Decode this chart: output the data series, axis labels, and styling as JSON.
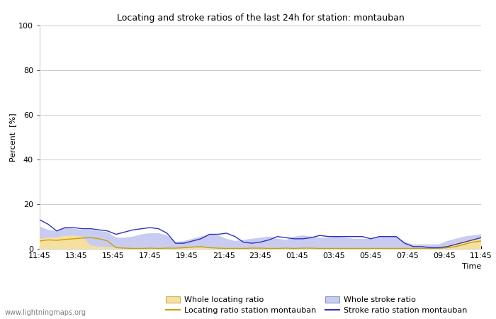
{
  "title": "Locating and stroke ratios of the last 24h for station: montauban",
  "xlabel": "Time",
  "ylabel": "Percent  [%]",
  "ylim": [
    0,
    100
  ],
  "yticks": [
    0,
    20,
    40,
    60,
    80,
    100
  ],
  "x_labels": [
    "11:45",
    "13:45",
    "15:45",
    "17:45",
    "19:45",
    "21:45",
    "23:45",
    "01:45",
    "03:45",
    "05:45",
    "07:45",
    "09:45",
    "11:45"
  ],
  "watermark": "www.lightningmaps.org",
  "legend": [
    {
      "label": "Whole locating ratio",
      "type": "fill",
      "color": "#f5e0a0",
      "edgecolor": "#d4b86a"
    },
    {
      "label": "Locating ratio station montauban",
      "type": "line",
      "color": "#c8a000"
    },
    {
      "label": "Whole stroke ratio",
      "type": "fill",
      "color": "#c8ccf0",
      "edgecolor": "#a0a8d8"
    },
    {
      "label": "Stroke ratio station montauban",
      "type": "line",
      "color": "#3030c0"
    }
  ],
  "whole_locating_upper": [
    4.5,
    5.0,
    5.2,
    5.8,
    6.0,
    5.5,
    1.5,
    1.0,
    0.8,
    0.5,
    0.5,
    0.5,
    0.5,
    0.5,
    0.5,
    0.5,
    0.5,
    0.5,
    0.5,
    0.5,
    0.5,
    0.5,
    0.5,
    0.5,
    0.5,
    0.5,
    0.5,
    0.5,
    0.5,
    0.5,
    0.5,
    0.5,
    0.5,
    0.5,
    0.5,
    0.5,
    0.5,
    0.5,
    0.5,
    0.5,
    0.5,
    0.5,
    0.5,
    0.5,
    0.5,
    0.5,
    0.5,
    0.5,
    1.5,
    2.5,
    3.5,
    4.5,
    5.0
  ],
  "locating_line": [
    3.5,
    4.0,
    3.8,
    4.2,
    4.5,
    4.8,
    5.0,
    4.5,
    3.5,
    0.5,
    0.3,
    0.2,
    0.2,
    0.3,
    0.2,
    0.3,
    0.3,
    0.5,
    0.8,
    1.0,
    0.5,
    0.3,
    0.2,
    0.2,
    0.2,
    0.3,
    0.3,
    0.2,
    0.2,
    0.3,
    0.2,
    0.3,
    0.3,
    0.2,
    0.2,
    0.2,
    0.2,
    0.2,
    0.2,
    0.2,
    0.2,
    0.2,
    0.2,
    0.2,
    0.2,
    0.2,
    0.2,
    0.2,
    0.5,
    1.0,
    2.0,
    3.0,
    3.5
  ],
  "whole_stroke_upper": [
    10.0,
    8.5,
    8.0,
    9.5,
    9.0,
    8.5,
    8.5,
    8.0,
    7.5,
    5.0,
    5.0,
    5.5,
    6.5,
    7.0,
    7.0,
    6.0,
    3.0,
    3.5,
    4.5,
    5.5,
    6.5,
    6.0,
    4.5,
    3.5,
    4.0,
    4.5,
    5.0,
    5.5,
    4.5,
    4.0,
    5.5,
    6.0,
    5.5,
    5.0,
    5.0,
    5.5,
    5.0,
    4.5,
    4.5,
    4.5,
    5.5,
    5.5,
    5.5,
    3.0,
    2.0,
    2.0,
    2.0,
    2.0,
    3.5,
    4.5,
    5.5,
    6.0,
    6.5
  ],
  "stroke_line": [
    13.0,
    11.0,
    8.0,
    9.5,
    9.5,
    9.0,
    9.0,
    8.5,
    8.0,
    6.5,
    7.5,
    8.5,
    9.0,
    9.5,
    9.0,
    7.0,
    2.5,
    2.5,
    3.5,
    4.5,
    6.5,
    6.5,
    7.0,
    5.5,
    3.0,
    2.5,
    3.0,
    4.0,
    5.5,
    5.0,
    4.5,
    4.5,
    5.0,
    6.0,
    5.5,
    5.5,
    5.5,
    5.5,
    5.5,
    4.5,
    5.5,
    5.5,
    5.5,
    2.5,
    1.0,
    1.0,
    0.5,
    0.5,
    1.0,
    2.0,
    3.0,
    4.0,
    5.0
  ]
}
